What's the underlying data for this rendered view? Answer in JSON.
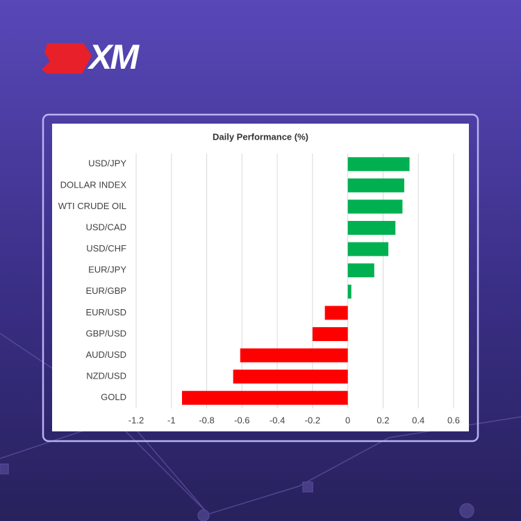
{
  "logo": "XM",
  "chart_data": {
    "type": "bar",
    "orientation": "horizontal",
    "title": "Daily Performance (%)",
    "categories": [
      "USD/JPY",
      "DOLLAR INDEX",
      "WTI CRUDE OIL",
      "USD/CAD",
      "USD/CHF",
      "EUR/JPY",
      "EUR/GBP",
      "EUR/USD",
      "GBP/USD",
      "AUD/USD",
      "NZD/USD",
      "GOLD"
    ],
    "values": [
      0.35,
      0.32,
      0.31,
      0.27,
      0.23,
      0.15,
      0.02,
      -0.13,
      -0.2,
      -0.61,
      -0.65,
      -0.94
    ],
    "colors": [
      "#00b050",
      "#00b050",
      "#00b050",
      "#00b050",
      "#00b050",
      "#00b050",
      "#00b050",
      "#ff0000",
      "#ff0000",
      "#ff0000",
      "#ff0000",
      "#ff0000"
    ],
    "xlim": [
      -1.2,
      0.6
    ],
    "xticks": [
      -1.2,
      -1,
      -0.8,
      -0.6,
      -0.4,
      -0.2,
      0,
      0.2,
      0.4,
      0.6
    ],
    "grid": true
  }
}
